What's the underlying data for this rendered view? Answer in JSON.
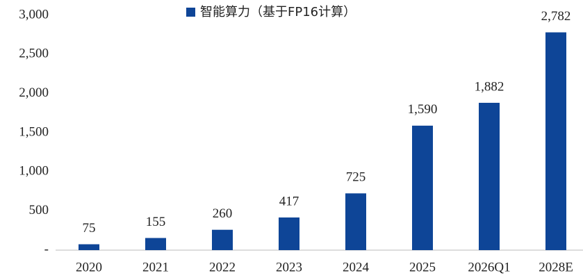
{
  "chart_data": {
    "type": "bar",
    "categories": [
      "2020",
      "2021",
      "2022",
      "2023",
      "2024",
      "2025",
      "2026Q1",
      "2028E"
    ],
    "series": [
      {
        "name": "智能算力（基于FP16计算）",
        "color": "#0e4597",
        "values": [
          75,
          155,
          260,
          417,
          725,
          1590,
          1882,
          2782
        ],
        "value_labels": [
          "75",
          "155",
          "260",
          "417",
          "725",
          "1,590",
          "1,882",
          "2,782"
        ]
      }
    ],
    "ylim": [
      0,
      3000
    ],
    "yticks": [
      {
        "value": 0,
        "label": "-"
      },
      500,
      {
        "value": 1000,
        "label": "1,000"
      },
      {
        "value": 1500,
        "label": "1,500"
      },
      {
        "value": 2000,
        "label": "2,000"
      },
      {
        "value": 2500,
        "label": "2,500"
      },
      {
        "value": 3000,
        "label": "3,000"
      }
    ],
    "grid": false,
    "legend": "top"
  }
}
